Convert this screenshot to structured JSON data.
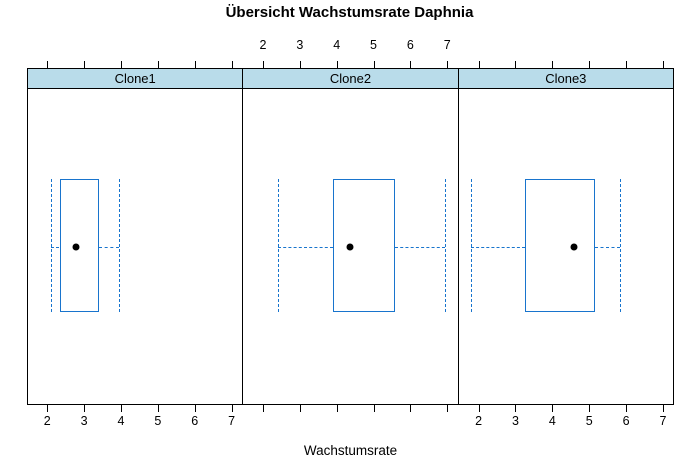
{
  "title": "Übersicht Wachstumsrate Daphnia",
  "x_axis_label": "Wachstumsrate",
  "colors": {
    "box": "#1874CD",
    "whisker": "#1874CD",
    "median_dot": "#000000",
    "strip_background": "#B9DCEA",
    "frame": "#000000",
    "page_background": "#FFFFFF"
  },
  "chart_data": {
    "type": "boxplot",
    "orientation": "horizontal",
    "title": "Übersicht Wachstumsrate Daphnia",
    "xlabel": "Wachstumsrate",
    "xlim": [
      1.45,
      7.3
    ],
    "xticks": [
      2,
      3,
      4,
      5,
      6,
      7
    ],
    "grid": false,
    "top_label_panels": [
      1
    ],
    "bottom_label_panels": [
      0,
      2
    ],
    "panels": [
      {
        "label": "Clone1",
        "whisker_low": 2.09,
        "q1": 2.31,
        "median": 2.76,
        "q3": 3.39,
        "whisker_high": 3.93,
        "outliers": []
      },
      {
        "label": "Clone2",
        "whisker_low": 2.4,
        "q1": 3.91,
        "median": 4.37,
        "q3": 5.59,
        "whisker_high": 6.95,
        "outliers": []
      },
      {
        "label": "Clone3",
        "whisker_low": 1.78,
        "q1": 3.25,
        "median": 4.6,
        "q3": 5.18,
        "whisker_high": 5.86,
        "outliers": []
      }
    ]
  }
}
